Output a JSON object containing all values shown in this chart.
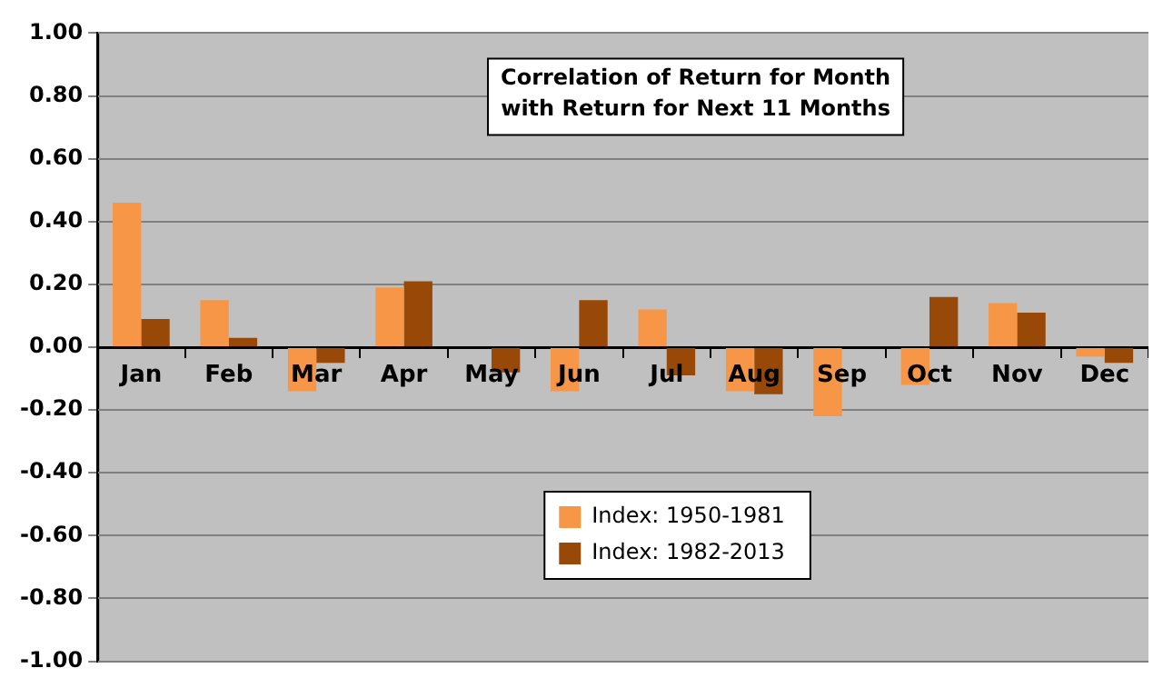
{
  "chart_data": {
    "type": "bar",
    "title": "Correlation of Return for Month\nwith Return for Next 11 Months",
    "categories": [
      "Jan",
      "Feb",
      "Mar",
      "Apr",
      "May",
      "Jun",
      "Jul",
      "Aug",
      "Sep",
      "Oct",
      "Nov",
      "Dec"
    ],
    "series": [
      {
        "name": "Index: 1950-1981",
        "color": "#f79646",
        "values": [
          0.46,
          0.15,
          -0.14,
          0.19,
          0.0,
          -0.14,
          0.12,
          -0.14,
          -0.22,
          -0.12,
          0.14,
          -0.03
        ]
      },
      {
        "name": "Index: 1982-2013",
        "color": "#984807",
        "values": [
          0.09,
          0.03,
          -0.05,
          0.21,
          -0.08,
          0.15,
          -0.09,
          -0.15,
          0.0,
          0.16,
          0.11,
          -0.05
        ]
      }
    ],
    "ylim": [
      -1,
      1
    ],
    "yticks": [
      {
        "value": -1,
        "label": "-1.00"
      },
      {
        "value": -0.8,
        "label": "-0.80"
      },
      {
        "value": -0.6,
        "label": "-0.60"
      },
      {
        "value": -0.4,
        "label": "-0.40"
      },
      {
        "value": -0.2,
        "label": "-0.20"
      },
      {
        "value": 0,
        "label": "0.00"
      },
      {
        "value": 0.2,
        "label": "0.20"
      },
      {
        "value": 0.4,
        "label": "0.40"
      },
      {
        "value": 0.6,
        "label": "0.60"
      },
      {
        "value": 0.8,
        "label": "0.80"
      },
      {
        "value": 1,
        "label": "1.00"
      }
    ],
    "grid": "y",
    "legend": "bottom"
  }
}
